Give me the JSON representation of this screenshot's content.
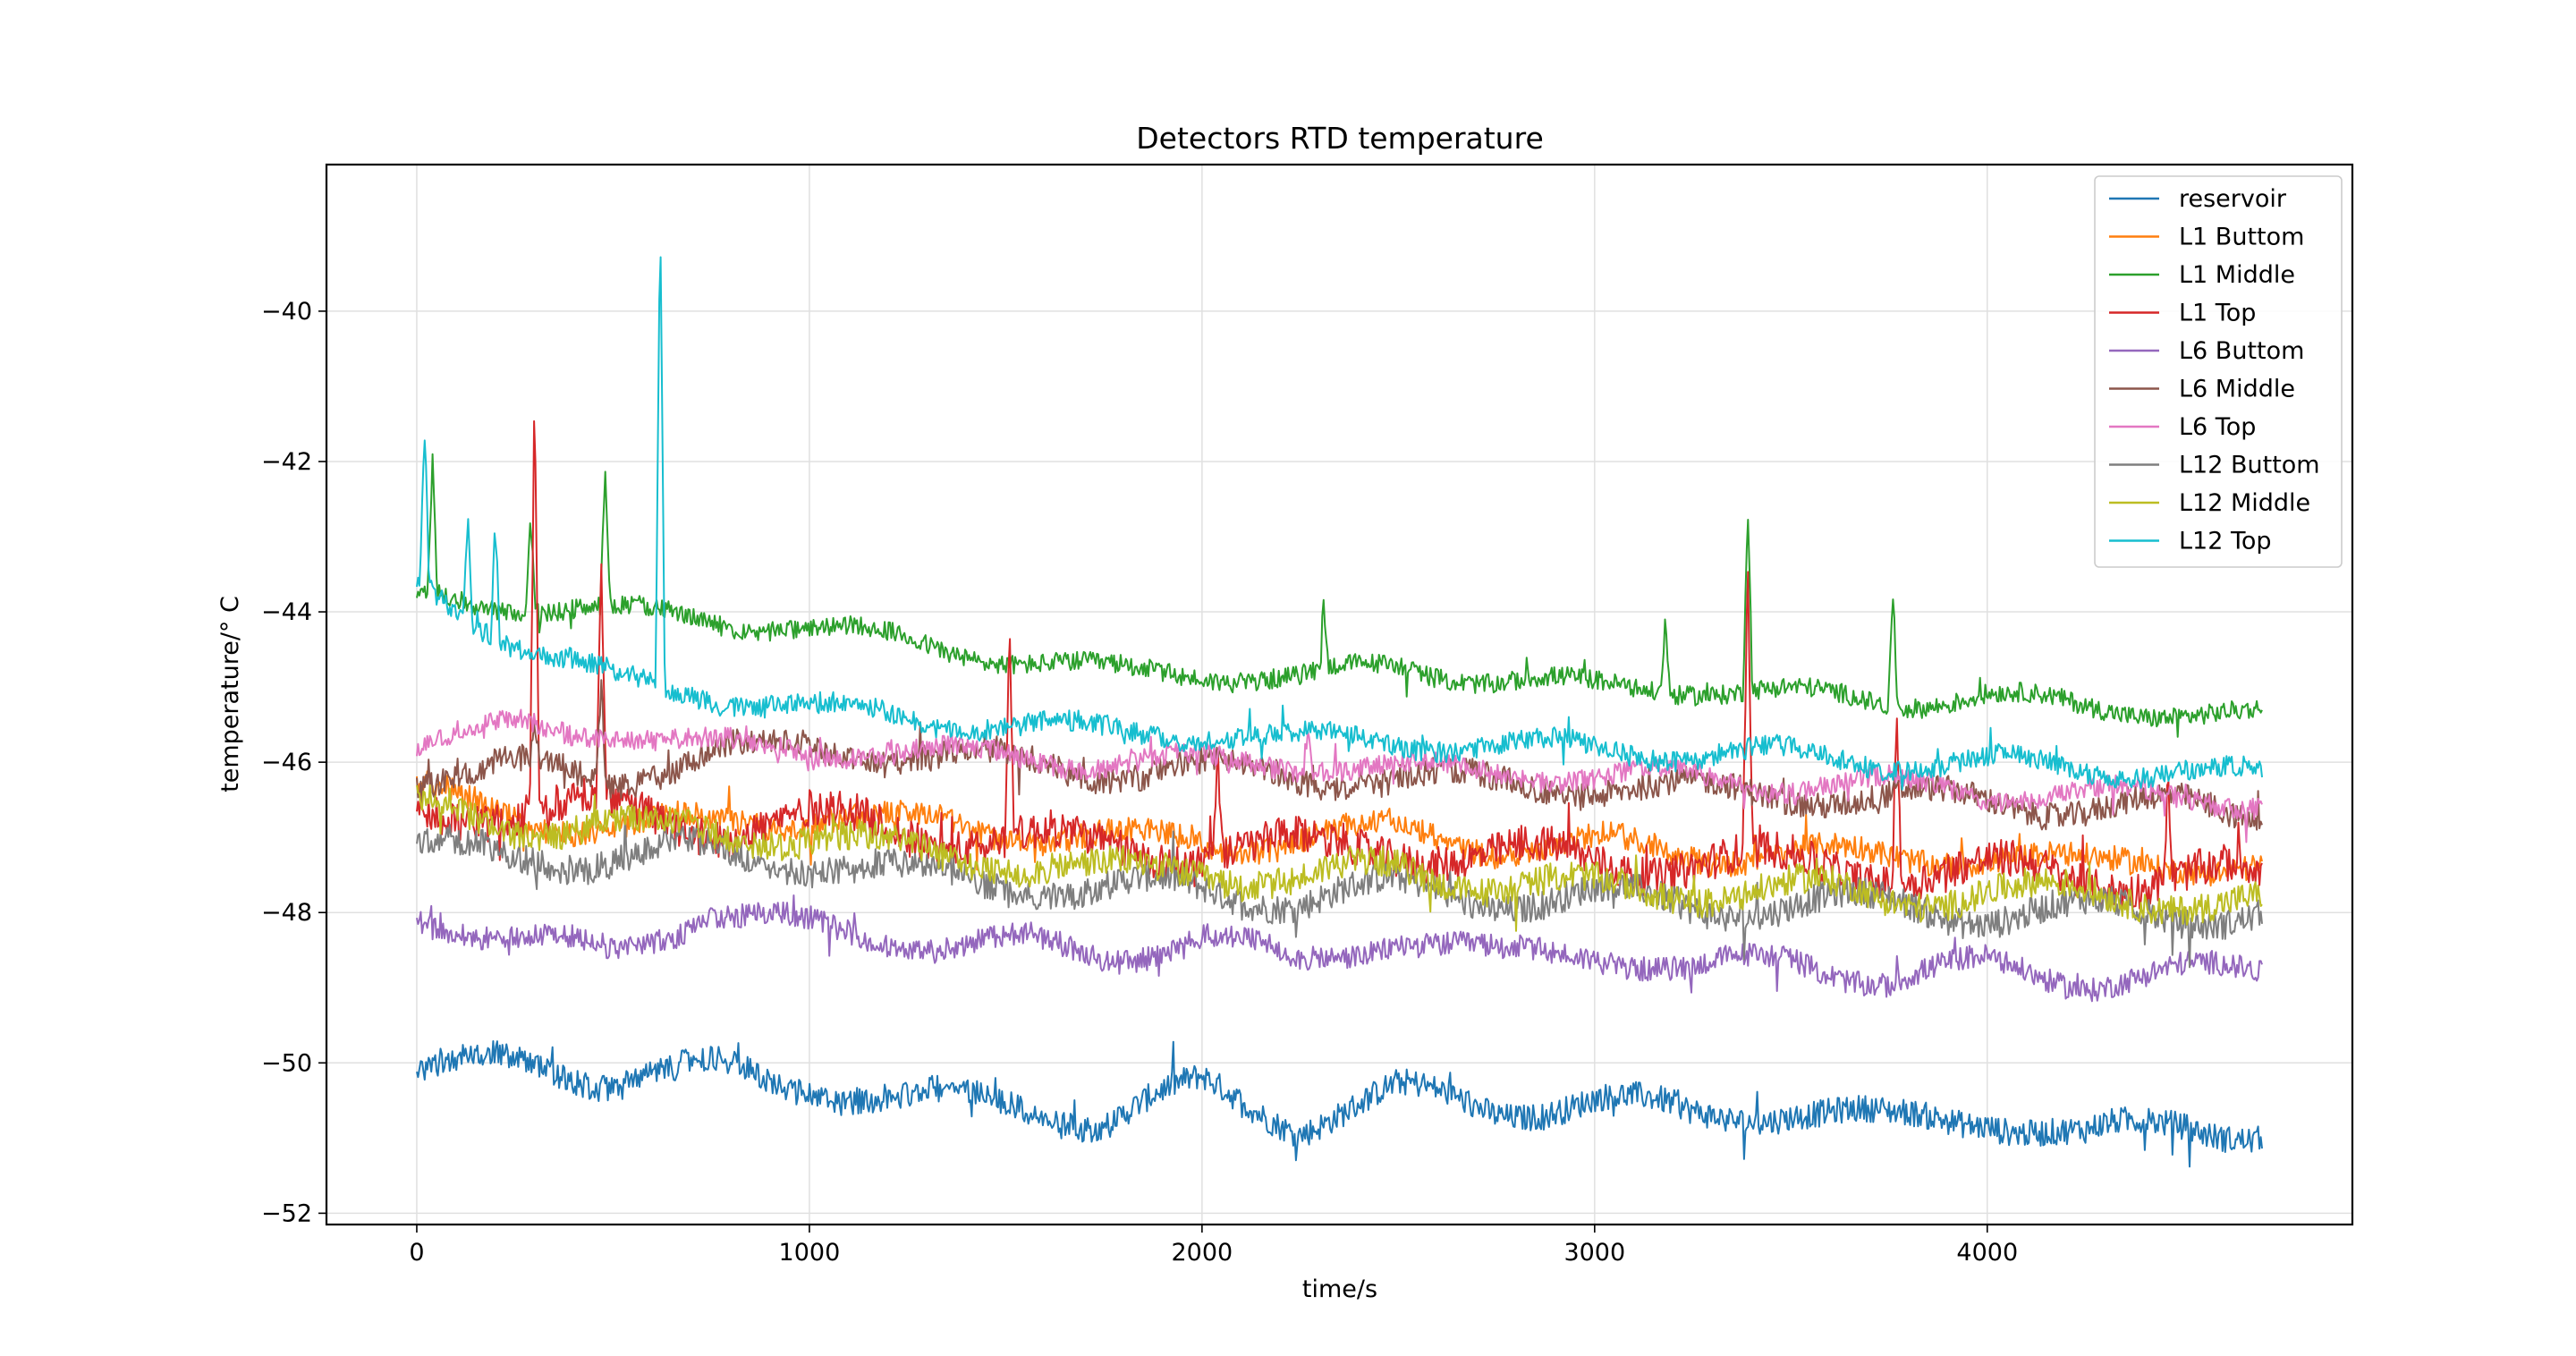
{
  "chart_data": {
    "type": "line",
    "title": "Detectors RTD temperature",
    "xlabel": "time/s",
    "ylabel": "temperature/$^\\circ C$",
    "ylabel_display": "temperature/° C",
    "xlim": [
      -230,
      4930
    ],
    "ylim": [
      -52.15,
      -38.05
    ],
    "xticks": [
      0,
      1000,
      2000,
      3000,
      4000
    ],
    "xtick_labels": [
      "0",
      "1000",
      "2000",
      "3000",
      "4000"
    ],
    "yticks": [
      -52,
      -50,
      -48,
      -46,
      -44,
      -42,
      -40
    ],
    "ytick_labels": [
      "−52",
      "−50",
      "−48",
      "−46",
      "−44",
      "−42",
      "−40"
    ],
    "grid": true,
    "legend_position": "top-right",
    "x": [
      0,
      250,
      500,
      750,
      1000,
      1250,
      1500,
      1750,
      2000,
      2250,
      2500,
      2750,
      3000,
      3250,
      3500,
      3750,
      4000,
      4250,
      4500,
      4700
    ],
    "series": [
      {
        "name": "reservoir",
        "color": "#1f77b4",
        "noise": 0.18,
        "spikes": [],
        "values": [
          -50.1,
          -50.0,
          -50.2,
          -50.1,
          -50.3,
          -50.5,
          -50.5,
          -50.8,
          -50.3,
          -50.8,
          -50.4,
          -50.6,
          -50.5,
          -50.7,
          -50.6,
          -50.8,
          -50.7,
          -51.0,
          -50.8,
          -50.9
        ]
      },
      {
        "name": "L1 Buttom",
        "color": "#ff7f0e",
        "noise": 0.17,
        "spikes": [],
        "values": [
          -46.4,
          -46.7,
          -46.9,
          -46.8,
          -46.7,
          -46.8,
          -46.9,
          -47.0,
          -47.1,
          -47.0,
          -46.9,
          -47.1,
          -47.1,
          -47.2,
          -47.2,
          -47.3,
          -47.2,
          -47.4,
          -47.3,
          -47.4
        ]
      },
      {
        "name": "L1 Middle",
        "color": "#2ca02c",
        "noise": 0.13,
        "spikes": [
          [
            40,
            -42.0
          ],
          [
            290,
            -42.6
          ],
          [
            480,
            -42.2
          ],
          [
            2310,
            -44.0
          ],
          [
            3180,
            -44.0
          ],
          [
            3390,
            -42.5
          ],
          [
            3760,
            -43.7
          ]
        ],
        "values": [
          -43.8,
          -43.9,
          -44.0,
          -44.1,
          -44.2,
          -44.4,
          -44.6,
          -44.8,
          -44.8,
          -44.9,
          -44.7,
          -44.9,
          -45.0,
          -45.0,
          -45.1,
          -45.2,
          -45.1,
          -45.3,
          -45.3,
          -45.4
        ]
      },
      {
        "name": "L1 Top",
        "color": "#d62728",
        "noise": 0.25,
        "spikes": [
          [
            300,
            -41.1
          ],
          [
            470,
            -43.5
          ],
          [
            1510,
            -44.2
          ],
          [
            2040,
            -45.8
          ],
          [
            3390,
            -43.3
          ],
          [
            3770,
            -45.2
          ],
          [
            4460,
            -46.2
          ]
        ],
        "values": [
          -46.6,
          -46.6,
          -46.7,
          -46.8,
          -46.8,
          -46.9,
          -47.0,
          -47.2,
          -47.1,
          -47.2,
          -47.1,
          -47.3,
          -47.3,
          -47.3,
          -47.4,
          -47.4,
          -47.5,
          -47.5,
          -47.5,
          -47.6
        ]
      },
      {
        "name": "L6 Buttom",
        "color": "#9467bd",
        "noise": 0.16,
        "spikes": [],
        "values": [
          -48.0,
          -48.4,
          -48.5,
          -48.0,
          -48.2,
          -48.4,
          -48.4,
          -48.6,
          -48.3,
          -48.7,
          -48.3,
          -48.6,
          -48.5,
          -48.8,
          -48.6,
          -48.9,
          -48.7,
          -48.9,
          -48.8,
          -48.8
        ]
      },
      {
        "name": "L6 Middle",
        "color": "#8c564b",
        "noise": 0.18,
        "spikes": [
          [
            300,
            -45.6
          ],
          [
            470,
            -44.8
          ]
        ],
        "values": [
          -46.2,
          -46.1,
          -46.2,
          -45.9,
          -45.8,
          -45.9,
          -46.0,
          -46.1,
          -46.1,
          -46.2,
          -46.2,
          -46.3,
          -46.3,
          -46.4,
          -46.4,
          -46.5,
          -46.5,
          -46.6,
          -46.6,
          -46.7
        ]
      },
      {
        "name": "L6 Top",
        "color": "#e377c2",
        "noise": 0.14,
        "spikes": [
          [
            1200,
            -45.6
          ],
          [
            2270,
            -45.4
          ]
        ],
        "values": [
          -45.8,
          -45.5,
          -45.6,
          -45.8,
          -45.8,
          -45.9,
          -45.9,
          -46.0,
          -46.0,
          -46.0,
          -46.1,
          -46.1,
          -46.2,
          -46.2,
          -46.3,
          -46.3,
          -46.4,
          -46.4,
          -46.5,
          -46.5
        ]
      },
      {
        "name": "L12 Buttom",
        "color": "#7f7f7f",
        "noise": 0.2,
        "spikes": [],
        "values": [
          -47.2,
          -47.2,
          -47.3,
          -47.2,
          -47.3,
          -47.5,
          -47.6,
          -47.7,
          -47.7,
          -47.8,
          -47.7,
          -47.8,
          -47.8,
          -47.9,
          -47.9,
          -47.9,
          -48.0,
          -48.0,
          -48.0,
          -48.0
        ]
      },
      {
        "name": "L12 Middle",
        "color": "#bcbd22",
        "noise": 0.2,
        "spikes": [],
        "values": [
          -46.6,
          -46.8,
          -46.9,
          -46.9,
          -47.0,
          -47.2,
          -47.3,
          -47.5,
          -47.4,
          -47.6,
          -47.4,
          -47.6,
          -47.7,
          -47.7,
          -47.7,
          -47.8,
          -47.7,
          -47.8,
          -47.8,
          -47.9
        ]
      },
      {
        "name": "L12 Top",
        "color": "#17becf",
        "noise": 0.14,
        "spikes": [
          [
            20,
            -41.6
          ],
          [
            130,
            -42.6
          ],
          [
            200,
            -42.7
          ],
          [
            620,
            -38.7
          ]
        ],
        "values": [
          -43.6,
          -44.4,
          -44.9,
          -45.1,
          -45.3,
          -45.4,
          -45.5,
          -45.6,
          -45.6,
          -45.7,
          -45.7,
          -45.8,
          -45.8,
          -45.9,
          -45.9,
          -46.0,
          -46.0,
          -46.1,
          -46.1,
          -46.2
        ]
      }
    ]
  }
}
